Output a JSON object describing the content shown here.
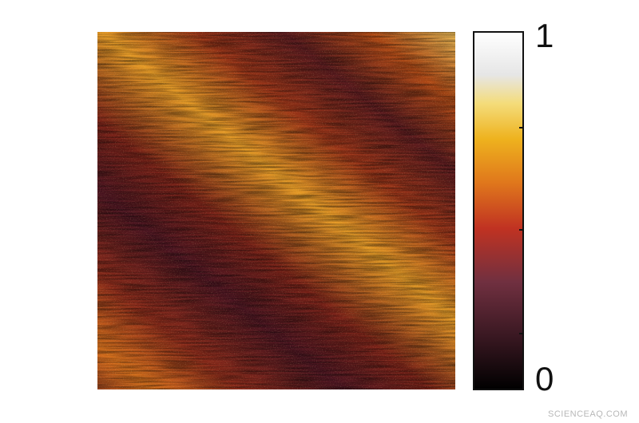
{
  "colorbar": {
    "max_label": "1",
    "min_label": "0"
  },
  "watermark": "SCIENCEAQ.COM"
}
